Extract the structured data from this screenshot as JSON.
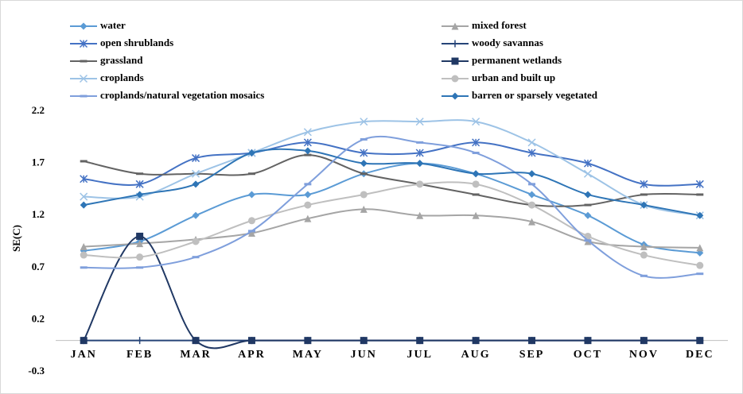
{
  "chart_data": {
    "type": "line",
    "y_label": "SE(C)",
    "categories": [
      "JAN",
      "FEB",
      "MAR",
      "APR",
      "MAY",
      "JUN",
      "JUL",
      "AUG",
      "SEP",
      "OCT",
      "NOV",
      "DEC"
    ],
    "ylim": [
      -0.3,
      2.2
    ],
    "yticks": [
      -0.3,
      0.2,
      0.7,
      1.2,
      1.7,
      2.2
    ],
    "grid": false,
    "smooth": true,
    "series": [
      {
        "name": "water",
        "color": "#5b9bd5",
        "marker": "diamond",
        "values": [
          0.86,
          0.95,
          1.2,
          1.4,
          1.4,
          1.6,
          1.7,
          1.6,
          1.4,
          1.2,
          0.92,
          0.84
        ]
      },
      {
        "name": "mixed forest",
        "color": "#a5a5a5",
        "marker": "triangle",
        "values": [
          0.9,
          0.93,
          0.97,
          1.03,
          1.17,
          1.26,
          1.2,
          1.2,
          1.14,
          0.95,
          0.9,
          0.89
        ]
      },
      {
        "name": "open shrublands",
        "color": "#4472c4",
        "marker": "star",
        "values": [
          1.55,
          1.5,
          1.75,
          1.8,
          1.9,
          1.8,
          1.8,
          1.9,
          1.8,
          1.7,
          1.5,
          1.5
        ]
      },
      {
        "name": "woody savannas",
        "color": "#264478",
        "marker": "plus",
        "values": [
          0,
          0,
          0,
          0,
          0,
          0,
          0,
          0,
          0,
          0,
          0,
          0
        ]
      },
      {
        "name": "grassland",
        "color": "#636363",
        "marker": "dash",
        "values": [
          1.72,
          1.6,
          1.6,
          1.6,
          1.78,
          1.6,
          1.5,
          1.4,
          1.3,
          1.3,
          1.4,
          1.4
        ]
      },
      {
        "name": "permanent wetlands",
        "color": "#203864",
        "marker": "square",
        "values": [
          0,
          1.0,
          0,
          0,
          0,
          0,
          0,
          0,
          0,
          0,
          0,
          0
        ]
      },
      {
        "name": "croplands",
        "color": "#9dc3e6",
        "marker": "x",
        "values": [
          1.38,
          1.38,
          1.6,
          1.8,
          2.0,
          2.1,
          2.1,
          2.1,
          1.9,
          1.6,
          1.3,
          1.2
        ]
      },
      {
        "name": "urban and built up",
        "color": "#bfbfbf",
        "marker": "circle",
        "values": [
          0.82,
          0.8,
          0.95,
          1.15,
          1.3,
          1.4,
          1.5,
          1.5,
          1.3,
          1.0,
          0.82,
          0.72
        ]
      },
      {
        "name": "croplands/natural vegetation mosaics",
        "color": "#7f9fdc",
        "marker": "dash",
        "values": [
          0.7,
          0.7,
          0.8,
          1.05,
          1.5,
          1.93,
          1.9,
          1.8,
          1.5,
          0.96,
          0.62,
          0.64
        ]
      },
      {
        "name": "barren or sparsely vegetated",
        "color": "#2e75b6",
        "marker": "diamond",
        "values": [
          1.3,
          1.4,
          1.5,
          1.8,
          1.82,
          1.7,
          1.7,
          1.6,
          1.6,
          1.4,
          1.3,
          1.2
        ]
      }
    ]
  }
}
